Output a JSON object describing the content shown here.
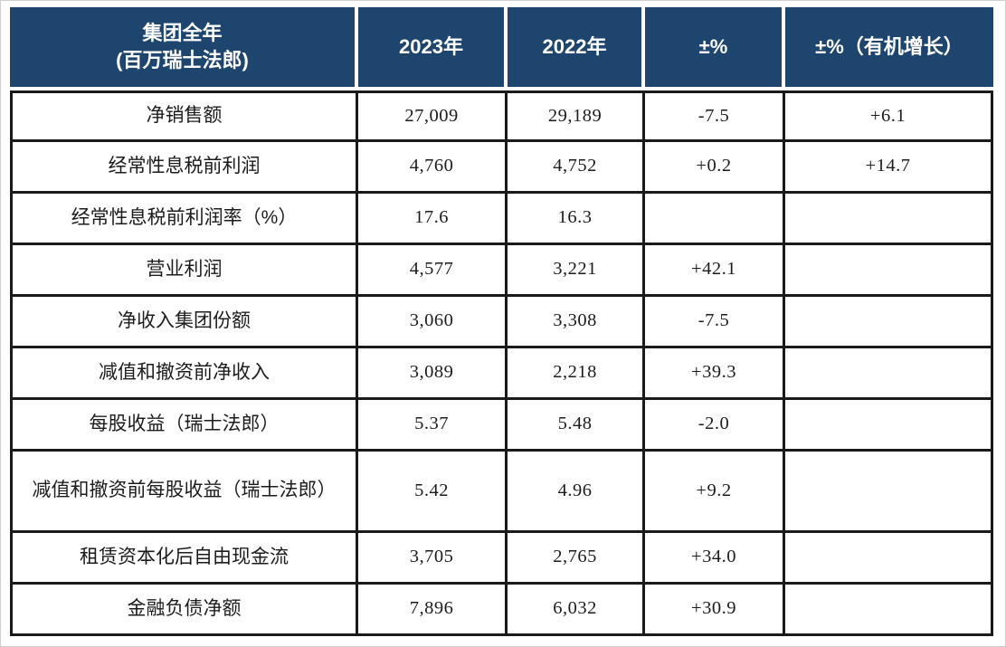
{
  "colors": {
    "header_bg": "#1e456e",
    "header_text": "#ffffff",
    "border_color": "#1a1a1a",
    "body_text": "#1c1c1c"
  },
  "table": {
    "header": {
      "metric_line1": "集团全年",
      "metric_line2": "(百万瑞士法郎)",
      "y2023": "2023年",
      "y2022": "2022年",
      "pct": "±%",
      "organic": "±%（有机增长）"
    },
    "rows": [
      {
        "label": "净销售额",
        "y2023": "27,009",
        "y2022": "29,189",
        "pct": "-7.5",
        "organic": "+6.1"
      },
      {
        "label": "经常性息税前利润",
        "y2023": "4,760",
        "y2022": "4,752",
        "pct": "+0.2",
        "organic": "+14.7"
      },
      {
        "label": "经常性息税前利润率（%）",
        "y2023": "17.6",
        "y2022": "16.3",
        "pct": "",
        "organic": ""
      },
      {
        "label": "营业利润",
        "y2023": "4,577",
        "y2022": "3,221",
        "pct": "+42.1",
        "organic": ""
      },
      {
        "label": "净收入集团份额",
        "y2023": "3,060",
        "y2022": "3,308",
        "pct": "-7.5",
        "organic": ""
      },
      {
        "label": "减值和撤资前净收入",
        "y2023": "3,089",
        "y2022": "2,218",
        "pct": "+39.3",
        "organic": ""
      },
      {
        "label": "每股收益（瑞士法郎）",
        "y2023": "5.37",
        "y2022": "5.48",
        "pct": "-2.0",
        "organic": ""
      },
      {
        "label": "减值和撤资前每股收益（瑞士法郎）",
        "y2023": "5.42",
        "y2022": "4.96",
        "pct": "+9.2",
        "organic": ""
      },
      {
        "label": "租赁资本化后自由现金流",
        "y2023": "3,705",
        "y2022": "2,765",
        "pct": "+34.0",
        "organic": ""
      },
      {
        "label": "金融负债净额",
        "y2023": "7,896",
        "y2022": "6,032",
        "pct": "+30.9",
        "organic": ""
      }
    ]
  }
}
